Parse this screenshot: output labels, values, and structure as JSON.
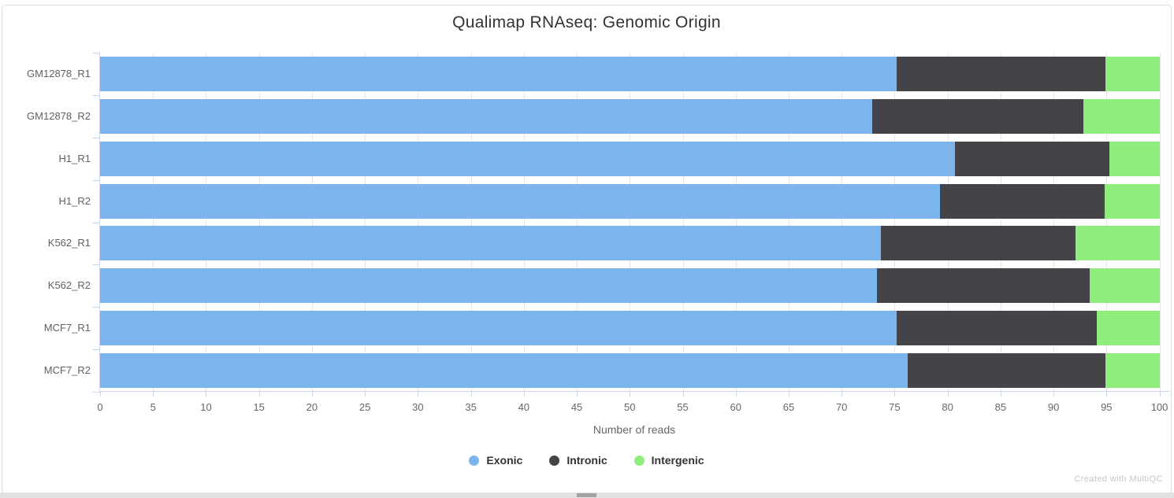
{
  "chart_data": {
    "type": "bar",
    "orientation": "horizontal",
    "stacked": true,
    "title": "Qualimap RNAseq: Genomic Origin",
    "xlabel": "Number of reads",
    "ylabel": "",
    "xlim": [
      0,
      101
    ],
    "xticks": [
      0,
      5,
      10,
      15,
      20,
      25,
      30,
      35,
      40,
      45,
      50,
      55,
      60,
      65,
      70,
      75,
      80,
      85,
      90,
      95,
      100
    ],
    "grid": true,
    "legend_position": "bottom",
    "categories": [
      "GM12878_R1",
      "GM12878_R2",
      "H1_R1",
      "H1_R2",
      "K562_R1",
      "K562_R2",
      "MCF7_R1",
      "MCF7_R2"
    ],
    "series": [
      {
        "name": "Exonic",
        "color": "#7cb5ec",
        "values": [
          75.2,
          72.9,
          80.7,
          79.3,
          73.7,
          73.3,
          75.2,
          76.2
        ]
      },
      {
        "name": "Intronic",
        "color": "#434348",
        "values": [
          19.7,
          19.9,
          14.6,
          15.5,
          18.4,
          20.1,
          18.9,
          18.7
        ]
      },
      {
        "name": "Intergenic",
        "color": "#90ed7d",
        "values": [
          5.1,
          7.2,
          4.7,
          5.2,
          7.9,
          6.6,
          5.9,
          5.1
        ]
      }
    ]
  },
  "footer": {
    "credit": "Created with MultiQC"
  }
}
